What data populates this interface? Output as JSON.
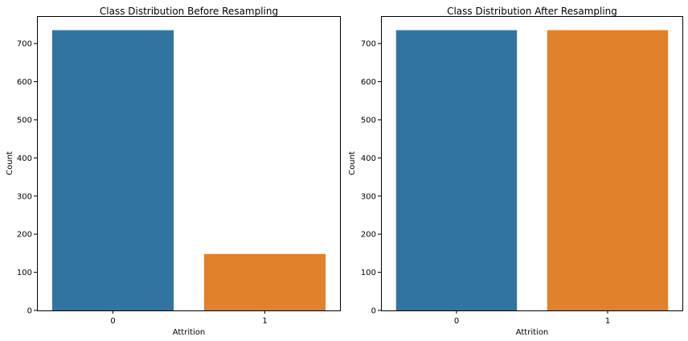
{
  "colors": {
    "class_0": "#3274a1",
    "class_1": "#e1812c",
    "axes": "#000000",
    "background": "#ffffff"
  },
  "chart_data": [
    {
      "type": "bar",
      "title": "Class Distribution Before Resampling",
      "xlabel": "Attrition",
      "ylabel": "Count",
      "categories": [
        "0",
        "1"
      ],
      "values": [
        735,
        148
      ],
      "ylim": [
        0,
        772
      ],
      "yticks": [
        0,
        100,
        200,
        300,
        400,
        500,
        600,
        700
      ],
      "grid": false
    },
    {
      "type": "bar",
      "title": "Class Distribution After Resampling",
      "xlabel": "Attrition",
      "ylabel": "Count",
      "categories": [
        "0",
        "1"
      ],
      "values": [
        735,
        735
      ],
      "ylim": [
        0,
        772
      ],
      "yticks": [
        0,
        100,
        200,
        300,
        400,
        500,
        600,
        700
      ],
      "grid": false
    }
  ]
}
